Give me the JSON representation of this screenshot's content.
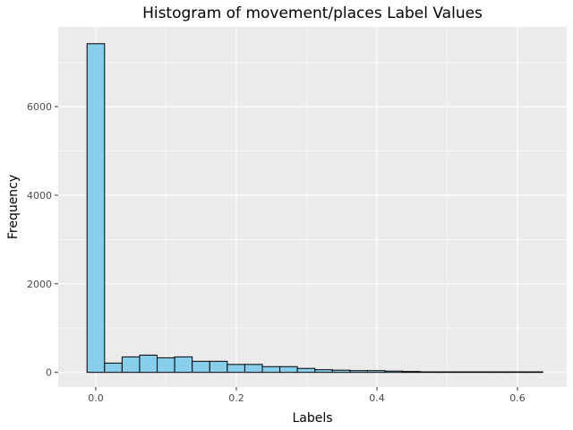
{
  "chart_data": {
    "type": "bar",
    "title": "Histogram of movement/places Label Values",
    "xlabel": "Labels",
    "ylabel": "Frequency",
    "xlim": [
      -0.0535,
      0.67
    ],
    "ylim": [
      -330,
      7800
    ],
    "x_ticks": [
      0.0,
      0.2,
      0.4,
      0.6
    ],
    "x_tick_labels": [
      "0.0",
      "0.2",
      "0.4",
      "0.6"
    ],
    "y_ticks": [
      0,
      2000,
      4000,
      6000
    ],
    "y_tick_labels": [
      "0",
      "2000",
      "4000",
      "6000"
    ],
    "bin_width": 0.02494,
    "bin_start": -0.01247,
    "bin_centers": [
      0.0,
      0.025,
      0.05,
      0.075,
      0.1,
      0.125,
      0.15,
      0.175,
      0.2,
      0.225,
      0.25,
      0.274,
      0.299,
      0.324,
      0.349,
      0.374,
      0.399,
      0.424,
      0.449,
      0.474,
      0.499,
      0.524,
      0.549,
      0.574,
      0.599,
      0.624
    ],
    "values": [
      7420,
      210,
      350,
      390,
      330,
      350,
      250,
      250,
      180,
      180,
      130,
      130,
      90,
      60,
      50,
      40,
      40,
      30,
      20,
      10,
      8,
      5,
      4,
      3,
      2,
      2
    ],
    "bar_fill": "#87ceeb",
    "bar_stroke": "#000000",
    "panel_background": "#ebebeb",
    "grid_color": "#ffffff",
    "grid": true
  }
}
